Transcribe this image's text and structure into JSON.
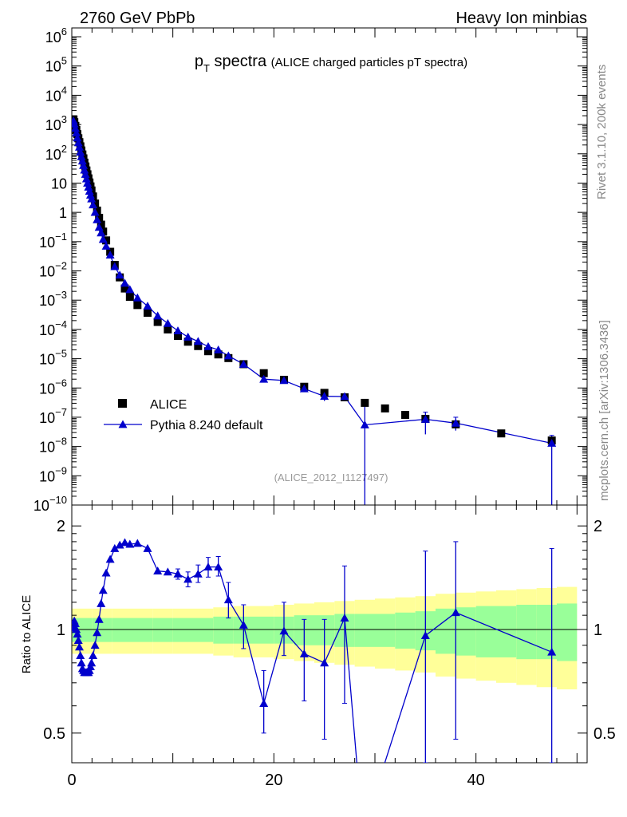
{
  "header": {
    "left": "2760 GeV PbPb",
    "right": "Heavy Ion minbias",
    "side_top": "Rivet 3.1.10,  200k events",
    "side_bottom": "mcplots.cern.ch [arXiv:1306.3436]",
    "watermark": "(ALICE_2012_I1127497)"
  },
  "chart_data": [
    {
      "panel": "spectrum",
      "type": "scatter",
      "title": "p_T spectra",
      "title_detail": "(ALICE charged particles pT spectra)",
      "xlim": [
        0,
        51
      ],
      "ylim": [
        1e-10,
        2000000.0
      ],
      "yscale": "log",
      "yticks": [
        {
          "v": 1000000.0,
          "base": "10",
          "exp": "6"
        },
        {
          "v": 100000.0,
          "base": "10",
          "exp": "5"
        },
        {
          "v": 10000.0,
          "base": "10",
          "exp": "4"
        },
        {
          "v": 1000.0,
          "base": "10",
          "exp": "3"
        },
        {
          "v": 100.0,
          "base": "10",
          "exp": "2"
        },
        {
          "v": 10,
          "base": "10",
          "exp": ""
        },
        {
          "v": 1,
          "base": "1",
          "exp": ""
        },
        {
          "v": 0.1,
          "base": "10",
          "exp": "−1"
        },
        {
          "v": 0.01,
          "base": "10",
          "exp": "−2"
        },
        {
          "v": 0.001,
          "base": "10",
          "exp": "−3"
        },
        {
          "v": 0.0001,
          "base": "10",
          "exp": "−4"
        },
        {
          "v": 1e-05,
          "base": "10",
          "exp": "−5"
        },
        {
          "v": 1e-06,
          "base": "10",
          "exp": "−6"
        },
        {
          "v": 1e-07,
          "base": "10",
          "exp": "−7"
        },
        {
          "v": 1e-08,
          "base": "10",
          "exp": "−8"
        },
        {
          "v": 1e-09,
          "base": "10",
          "exp": "−9"
        },
        {
          "v": 1e-10,
          "base": "10",
          "exp": "−10"
        }
      ],
      "legend_position": "bottom-left",
      "series": [
        {
          "name": "ALICE",
          "marker": "square",
          "color": "#000000",
          "x": [
            0.17,
            0.25,
            0.35,
            0.45,
            0.55,
            0.65,
            0.75,
            0.85,
            0.95,
            1.05,
            1.15,
            1.25,
            1.35,
            1.45,
            1.55,
            1.65,
            1.75,
            1.85,
            1.95,
            2.1,
            2.3,
            2.5,
            2.7,
            2.9,
            3.1,
            3.4,
            3.8,
            4.25,
            4.75,
            5.25,
            5.75,
            6.5,
            7.5,
            8.5,
            9.5,
            10.5,
            11.5,
            12.5,
            13.5,
            14.5,
            15.5,
            17,
            19,
            21,
            23,
            25,
            27,
            29,
            31,
            33,
            35,
            38,
            42.5,
            47.5
          ],
          "y": [
            1500,
            1200,
            900,
            650,
            470,
            340,
            250,
            180,
            130,
            95,
            70,
            50,
            37,
            27,
            20,
            14.5,
            10.5,
            7.7,
            5.6,
            3.5,
            2.0,
            1.15,
            0.65,
            0.38,
            0.22,
            0.11,
            0.045,
            0.016,
            0.006,
            0.0025,
            0.0013,
            0.00068,
            0.00037,
            0.00018,
            0.0001,
            6e-05,
            3.8e-05,
            2.7e-05,
            1.8e-05,
            1.4e-05,
            1.05e-05,
            6.5e-06,
            3.2e-06,
            1.9e-06,
            1.1e-06,
            6.8e-07,
            4.8e-07,
            3.1e-07,
            2e-07,
            1.2e-07,
            8.8e-08,
            5.7e-08,
            2.8e-08,
            1.6e-08
          ]
        },
        {
          "name": "Pythia 8.240 default",
          "marker": "triangle",
          "color": "#0000cc",
          "x": [
            0.17,
            0.25,
            0.35,
            0.45,
            0.55,
            0.65,
            0.75,
            0.85,
            0.95,
            1.05,
            1.15,
            1.25,
            1.35,
            1.45,
            1.55,
            1.65,
            1.75,
            1.85,
            1.95,
            2.1,
            2.3,
            2.5,
            2.7,
            2.9,
            3.1,
            3.4,
            3.8,
            4.25,
            4.75,
            5.25,
            5.75,
            6.5,
            7.5,
            8.5,
            9.5,
            10.5,
            11.5,
            12.5,
            13.5,
            14.5,
            15.5,
            17,
            19,
            21,
            23,
            25,
            27,
            29,
            35,
            38,
            47.5
          ],
          "y": [
            1350,
            1050,
            750,
            520,
            350,
            240,
            170,
            115,
            80,
            57,
            40,
            28,
            20,
            14,
            10,
            7.3,
            5.3,
            3.9,
            2.9,
            1.8,
            1.0,
            0.56,
            0.31,
            0.2,
            0.12,
            0.07,
            0.035,
            0.014,
            0.0072,
            0.0038,
            0.0023,
            0.0012,
            0.00063,
            0.00029,
            0.00016,
            9e-05,
            5.5e-05,
            3.9e-05,
            2.6e-05,
            2e-05,
            1.25e-05,
            6.5e-06,
            2e-06,
            1.8e-06,
            9.4e-07,
            5.2e-07,
            5.1e-07,
            5.5e-08,
            8.5e-08,
            6.3e-08,
            1.3e-08
          ],
          "errors": [
            {
              "x": 25,
              "lo": 3.6e-07,
              "hi": 7e-07
            },
            {
              "x": 35,
              "lo": 2.6e-08,
              "hi": 1.5e-07
            },
            {
              "x": 38,
              "lo": 3.5e-08,
              "hi": 1e-07
            },
            {
              "x": 29,
              "lo": 1e-11,
              "hi": 4e-07
            },
            {
              "x": 47.5,
              "lo": 1e-11,
              "hi": 2.4e-08
            }
          ]
        }
      ]
    },
    {
      "panel": "ratio",
      "type": "line",
      "ylabel": "Ratio to ALICE",
      "xlim": [
        0,
        51
      ],
      "ylim": [
        0.41,
        2.3
      ],
      "yscale": "log",
      "yticks": [
        {
          "v": 0.5,
          "label": "0.5"
        },
        {
          "v": 1,
          "label": "1"
        },
        {
          "v": 2,
          "label": "2"
        }
      ],
      "xticks": [
        {
          "v": 0,
          "label": "0"
        },
        {
          "v": 20,
          "label": "20"
        },
        {
          "v": 40,
          "label": "40"
        }
      ],
      "bands": {
        "x": [
          0,
          2,
          4,
          6,
          8,
          10,
          12,
          14,
          16,
          18,
          20,
          22,
          24,
          26,
          28,
          30,
          32,
          34,
          36,
          38,
          40,
          42,
          44,
          46,
          48,
          50
        ],
        "green": [
          0.08,
          0.08,
          0.08,
          0.08,
          0.08,
          0.08,
          0.08,
          0.09,
          0.09,
          0.09,
          0.09,
          0.1,
          0.1,
          0.11,
          0.11,
          0.11,
          0.12,
          0.13,
          0.15,
          0.16,
          0.17,
          0.17,
          0.18,
          0.18,
          0.19,
          0.19
        ],
        "yellow": [
          0.15,
          0.15,
          0.15,
          0.15,
          0.15,
          0.15,
          0.15,
          0.16,
          0.17,
          0.17,
          0.18,
          0.19,
          0.2,
          0.21,
          0.22,
          0.23,
          0.24,
          0.25,
          0.27,
          0.28,
          0.29,
          0.3,
          0.31,
          0.32,
          0.33,
          0.34
        ],
        "green_color": "#99ff99",
        "yellow_color": "#ffff99"
      },
      "series": [
        {
          "name": "Pythia 8.240 default",
          "color": "#0000cc",
          "x": [
            0.17,
            0.25,
            0.35,
            0.45,
            0.55,
            0.65,
            0.75,
            0.85,
            0.95,
            1.05,
            1.15,
            1.25,
            1.35,
            1.45,
            1.55,
            1.65,
            1.75,
            1.85,
            1.95,
            2.1,
            2.3,
            2.5,
            2.7,
            2.9,
            3.1,
            3.4,
            3.8,
            4.25,
            4.75,
            5.25,
            5.75,
            6.5,
            7.5,
            8.5,
            9.5,
            10.5,
            11.5,
            12.5,
            13.5,
            14.5,
            15.5,
            17,
            19,
            21,
            23,
            25,
            27,
            28.3,
            29.5,
            35,
            38,
            47.5
          ],
          "y": [
            1.01,
            1.06,
            1.04,
            1.0,
            0.97,
            0.93,
            0.89,
            0.84,
            0.8,
            0.77,
            0.76,
            0.75,
            0.75,
            0.75,
            0.75,
            0.75,
            0.76,
            0.78,
            0.8,
            0.84,
            0.9,
            0.98,
            1.07,
            1.19,
            1.3,
            1.46,
            1.6,
            1.72,
            1.76,
            1.79,
            1.77,
            1.78,
            1.72,
            1.48,
            1.47,
            1.45,
            1.4,
            1.45,
            1.52,
            1.52,
            1.22,
            1.03,
            0.61,
            0.99,
            0.85,
            0.8,
            1.08,
            0.38,
            0.3,
            0.96,
            1.12,
            0.86
          ],
          "errors": [
            {
              "x": 10.5,
              "lo": 1.4,
              "hi": 1.5
            },
            {
              "x": 11.5,
              "lo": 1.33,
              "hi": 1.47
            },
            {
              "x": 12.5,
              "lo": 1.37,
              "hi": 1.54
            },
            {
              "x": 13.5,
              "lo": 1.42,
              "hi": 1.62
            },
            {
              "x": 14.5,
              "lo": 1.43,
              "hi": 1.63
            },
            {
              "x": 15.5,
              "lo": 1.08,
              "hi": 1.37
            },
            {
              "x": 17,
              "lo": 0.88,
              "hi": 1.18
            },
            {
              "x": 19,
              "lo": 0.5,
              "hi": 0.76
            },
            {
              "x": 21,
              "lo": 0.84,
              "hi": 1.2
            },
            {
              "x": 23,
              "lo": 0.62,
              "hi": 1.07
            },
            {
              "x": 25,
              "lo": 0.48,
              "hi": 1.07
            },
            {
              "x": 27,
              "lo": 0.61,
              "hi": 1.53
            },
            {
              "x": 35,
              "lo": 0.41,
              "hi": 1.69
            },
            {
              "x": 38,
              "lo": 0.48,
              "hi": 1.8
            },
            {
              "x": 47.5,
              "lo": 0.41,
              "hi": 1.72
            }
          ]
        }
      ]
    }
  ]
}
